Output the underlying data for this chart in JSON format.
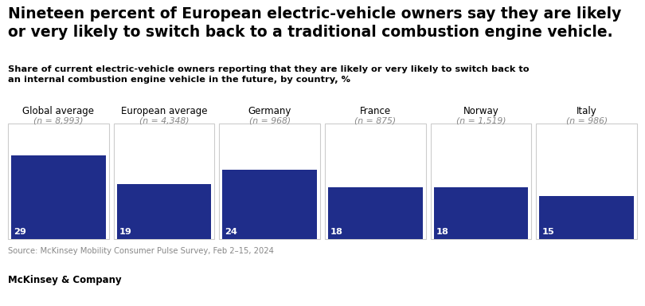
{
  "title": "Nineteen percent of European electric-vehicle owners say they are likely\nor very likely to switch back to a traditional combustion engine vehicle.",
  "subtitle": "Share of current electric-vehicle owners reporting that they are likely or very likely to switch back to\nan internal combustion engine vehicle in the future, by country, %",
  "categories": [
    "Global average",
    "European average",
    "Germany",
    "France",
    "Norway",
    "Italy"
  ],
  "sample_sizes": [
    "(n = 8,993)",
    "(n = 4,348)",
    "(n = 968)",
    "(n = 875)",
    "(n = 1,519)",
    "(n = 986)"
  ],
  "values": [
    29,
    19,
    24,
    18,
    18,
    15
  ],
  "bar_color": "#1f2d8a",
  "box_outline_color": "#cccccc",
  "background_color": "#ffffff",
  "value_max": 40,
  "source_text": "Source: McKinsey Mobility Consumer Pulse Survey, Feb 2–15, 2024",
  "footer_text": "McKinsey & Company",
  "title_fontsize": 13.5,
  "subtitle_fontsize": 8.2,
  "category_fontsize": 8.5,
  "sample_fontsize": 7.8,
  "value_label_fontsize": 8.2,
  "source_fontsize": 7.2,
  "footer_fontsize": 8.5
}
